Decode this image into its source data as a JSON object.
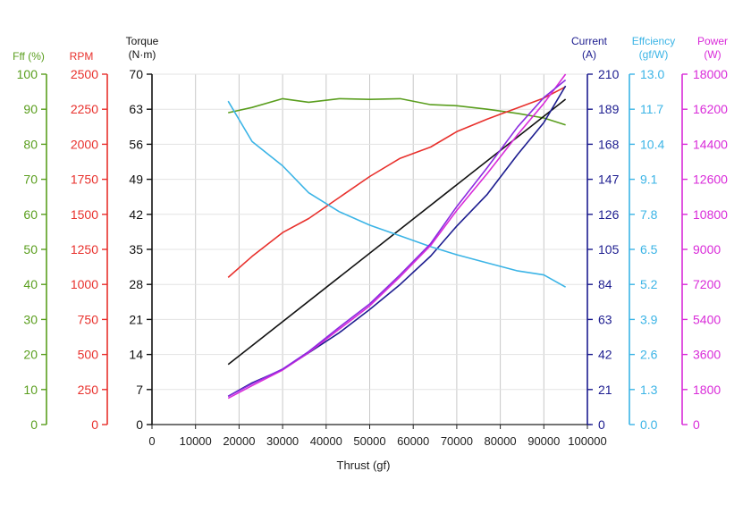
{
  "chart_data": {
    "type": "line",
    "xlabel": "Thrust (gf)",
    "x_range": [
      0,
      100000
    ],
    "x_ticks": [
      "0",
      "10000",
      "20000",
      "30000",
      "40000",
      "50000",
      "60000",
      "70000",
      "80000",
      "90000",
      "100000"
    ],
    "grid": "vertical",
    "axes": [
      {
        "id": "eff",
        "side": "left",
        "title": "Fff (%)",
        "unit": "",
        "color": "#5a9e1e",
        "range": [
          0,
          100
        ],
        "ticks": [
          "0",
          "10",
          "20",
          "30",
          "40",
          "50",
          "60",
          "70",
          "80",
          "90",
          "100"
        ]
      },
      {
        "id": "rpm",
        "side": "left",
        "title": "RPM",
        "unit": "",
        "color": "#e8302c",
        "range": [
          0,
          2500
        ],
        "ticks": [
          "0",
          "250",
          "500",
          "750",
          "1000",
          "1250",
          "1500",
          "1750",
          "2000",
          "2250",
          "2500"
        ]
      },
      {
        "id": "torque",
        "side": "left",
        "title": "Torque",
        "unit": "(N·m)",
        "color": "#111111",
        "range": [
          0,
          70
        ],
        "ticks": [
          "0",
          "7",
          "14",
          "21",
          "28",
          "35",
          "42",
          "49",
          "56",
          "63",
          "70"
        ]
      },
      {
        "id": "current",
        "side": "right",
        "title": "Current",
        "unit": "(A)",
        "color": "#1c1c8f",
        "range": [
          0,
          210
        ],
        "ticks": [
          "0",
          "21",
          "42",
          "63",
          "84",
          "105",
          "126",
          "147",
          "168",
          "189",
          "210"
        ]
      },
      {
        "id": "efficiency",
        "side": "right",
        "title": "Effciency",
        "unit": "(gf/W)",
        "color": "#3bb4e6",
        "range": [
          0,
          13
        ],
        "ticks": [
          "0.0",
          "1.3",
          "2.6",
          "3.9",
          "5.2",
          "6.5",
          "7.8",
          "9.1",
          "10.4",
          "11.7",
          "13.0"
        ]
      },
      {
        "id": "power",
        "side": "right",
        "title": "Power",
        "unit": "(W)",
        "color": "#d92bd9",
        "range": [
          0,
          18000
        ],
        "ticks": [
          "0",
          "1800",
          "3600",
          "5400",
          "7200",
          "9000",
          "10800",
          "12600",
          "14400",
          "16200",
          "18000"
        ]
      }
    ],
    "series": [
      {
        "axis": "eff",
        "color": "#5a9e1e",
        "x": [
          17500,
          23000,
          30000,
          36000,
          43000,
          50000,
          57000,
          64000,
          70000,
          77000,
          84000,
          90000,
          95000
        ],
        "values": [
          89,
          90.5,
          93,
          92,
          93,
          92.8,
          93,
          91.3,
          91,
          90,
          88.8,
          87.5,
          85.5
        ]
      },
      {
        "axis": "rpm",
        "color": "#e8302c",
        "x": [
          17500,
          23000,
          30000,
          36000,
          43000,
          50000,
          57000,
          64000,
          70000,
          77000,
          84000,
          90000,
          95000
        ],
        "values": [
          1050,
          1200,
          1370,
          1470,
          1620,
          1770,
          1900,
          1980,
          2090,
          2180,
          2260,
          2330,
          2410
        ]
      },
      {
        "axis": "torque",
        "color": "#111111",
        "x": [
          17500,
          95000
        ],
        "values": [
          12,
          65
        ]
      },
      {
        "axis": "current",
        "color": "#1c1c8f",
        "x": [
          17500,
          23000,
          30000,
          36000,
          43000,
          50000,
          57000,
          64000,
          70000,
          77000,
          84000,
          90000,
          95000
        ],
        "values": [
          17,
          25,
          33,
          43,
          55,
          69,
          84,
          101,
          119,
          138,
          162,
          181,
          203
        ]
      },
      {
        "axis": "efficiency",
        "color": "#3bb4e6",
        "x": [
          17500,
          23000,
          30000,
          36000,
          43000,
          50000,
          57000,
          64000,
          70000,
          77000,
          84000,
          90000,
          95000
        ],
        "values": [
          12.0,
          10.5,
          9.6,
          8.6,
          7.9,
          7.4,
          7.0,
          6.6,
          6.3,
          6.0,
          5.7,
          5.55,
          5.1
        ]
      },
      {
        "axis": "power",
        "color": "#d92bd9",
        "x": [
          17500,
          23000,
          30000,
          36000,
          43000,
          50000,
          57000,
          64000,
          70000,
          77000,
          84000,
          90000,
          95000
        ],
        "values": [
          1350,
          2000,
          2800,
          3700,
          4900,
          6100,
          7600,
          9200,
          11000,
          12900,
          14900,
          16500,
          18000
        ]
      },
      {
        "axis": "power",
        "color": "#8b2be0",
        "x": [
          17500,
          23000,
          30000,
          36000,
          43000,
          50000,
          57000,
          64000,
          70000,
          77000,
          84000,
          90000,
          95000
        ],
        "values": [
          1450,
          2100,
          2850,
          3750,
          5000,
          6200,
          7700,
          9300,
          11200,
          13200,
          15300,
          16800,
          17700
        ]
      }
    ]
  }
}
